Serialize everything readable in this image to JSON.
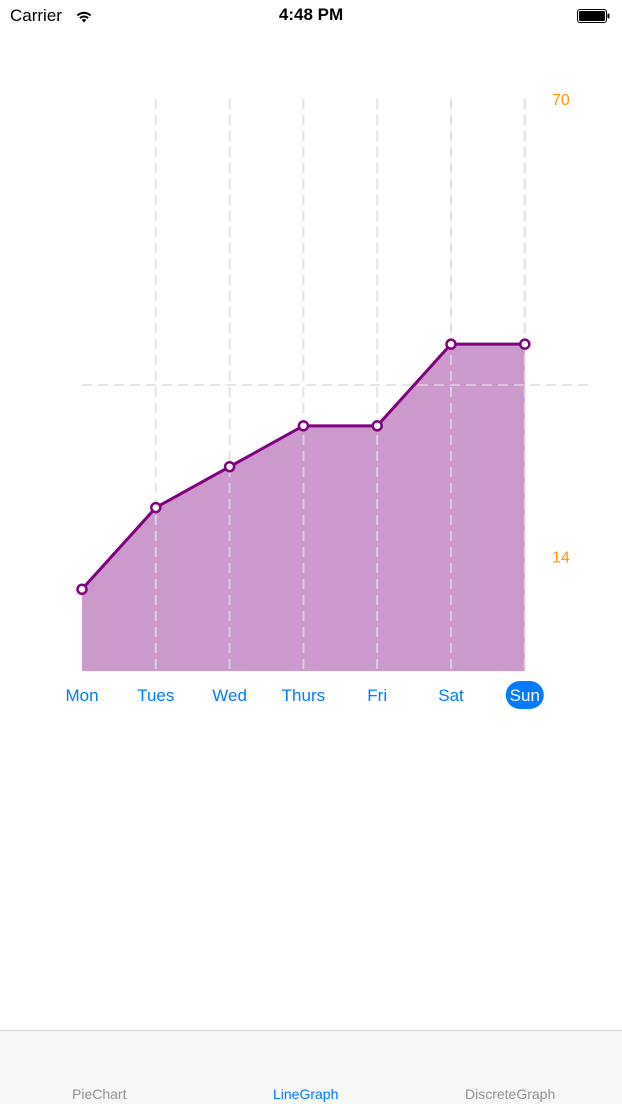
{
  "status_bar": {
    "carrier": "Carrier",
    "time": "4:48 PM",
    "wifi_icon": "wifi-icon",
    "battery_icon": "battery-icon"
  },
  "chart_data": {
    "type": "area",
    "categories": [
      "Mon",
      "Tues",
      "Wed",
      "Thurs",
      "Fri",
      "Sat",
      "Sun"
    ],
    "series": [
      {
        "values": [
          10,
          20,
          25,
          30,
          30,
          40,
          40
        ]
      }
    ],
    "ylim": [
      0,
      70
    ],
    "y_tick_labels": [
      "70",
      "14"
    ],
    "y_ticks": [
      70,
      14
    ],
    "selected_category": "Sun",
    "reference_line_y": 35,
    "colors": {
      "line": "#800080",
      "fill": "#cc99cc",
      "axis_label": "#ff9500",
      "day_label": "#007aff",
      "selected_bg": "#007aff",
      "grid": "#dcdcdc"
    }
  },
  "tab_bar": {
    "tabs": [
      {
        "label": "PieChart",
        "active": false
      },
      {
        "label": "LineGraph",
        "active": true
      },
      {
        "label": "DiscreteGraph",
        "active": false
      }
    ]
  }
}
